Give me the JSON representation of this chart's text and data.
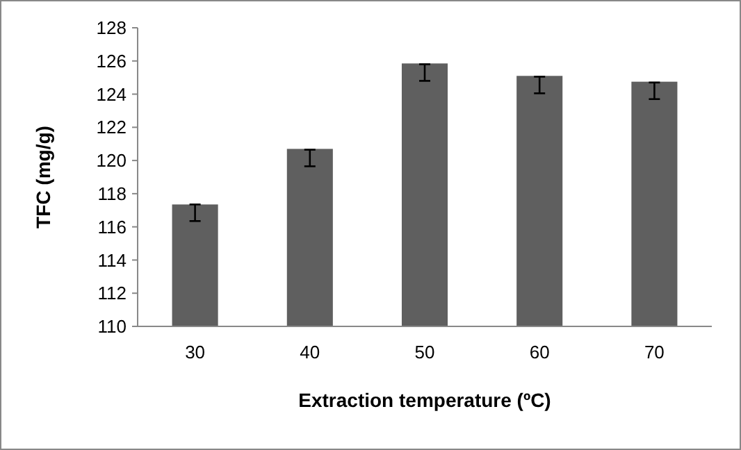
{
  "chart_data": {
    "type": "bar",
    "xlabel": "Extraction temperature (ºC)",
    "ylabel": "TFC (mg/g)",
    "categories": [
      "30",
      "40",
      "50",
      "60",
      "70"
    ],
    "values": [
      117.35,
      120.7,
      125.85,
      125.1,
      124.75
    ],
    "errors": [
      [
        116.35,
        117.35
      ],
      [
        119.65,
        120.65
      ],
      [
        124.8,
        125.8
      ],
      [
        124.05,
        125.05
      ],
      [
        123.7,
        124.7
      ]
    ],
    "color": "#5f5f5f",
    "ylim": [
      110,
      128
    ],
    "yticks": [
      110,
      112,
      114,
      116,
      118,
      120,
      122,
      124,
      126,
      128
    ],
    "grid": false
  }
}
